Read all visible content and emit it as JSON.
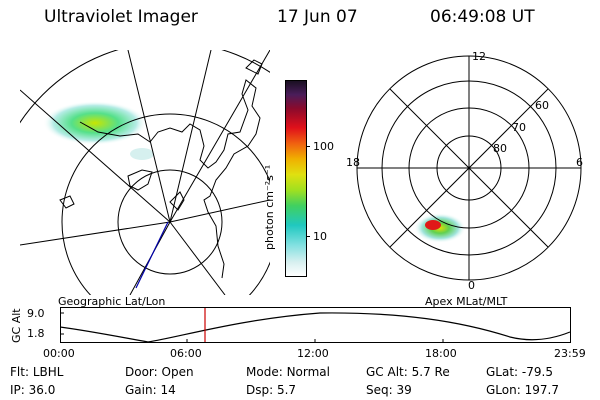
{
  "header": {
    "instrument": "Ultraviolet Imager",
    "date": "17 Jun 07",
    "time": "06:49:08 UT"
  },
  "colorbar": {
    "label": "photon cm⁻²s⁻¹",
    "ticks": [
      "100",
      "10"
    ]
  },
  "polar_plot": {
    "mlt_labels": {
      "top": "12",
      "left": "18",
      "right": "6",
      "bottom": "0"
    },
    "lat_labels": [
      "60",
      "70",
      "80"
    ]
  },
  "map_caption": "Geographic Lat/Lon",
  "polar_caption": "Apex MLat/MLT",
  "altitude_plot": {
    "ylabel": "GC Alt",
    "yticks": [
      "9.0",
      "1.8"
    ],
    "xticks": [
      "00:00",
      "06:00",
      "12:00",
      "18:00",
      "23:59"
    ]
  },
  "info": {
    "row1": [
      {
        "label": "Flt:",
        "value": "LBHL"
      },
      {
        "label": "Door:",
        "value": "Open"
      },
      {
        "label": "Mode:",
        "value": "Normal"
      },
      {
        "label": "GC Alt:",
        "value": "5.7 Re"
      },
      {
        "label": "GLat:",
        "value": "-79.5"
      }
    ],
    "row2": [
      {
        "label": "IP:",
        "value": "36.0"
      },
      {
        "label": "Gain:",
        "value": "14"
      },
      {
        "label": "Dsp:",
        "value": "5.7"
      },
      {
        "label": "Seq:",
        "value": "39"
      },
      {
        "label": "GLon:",
        "value": "197.7"
      }
    ]
  },
  "colors": {
    "trace": "#000000",
    "current_time_marker": "#cc0000",
    "magnetic_pole_line": "#0000aa"
  }
}
